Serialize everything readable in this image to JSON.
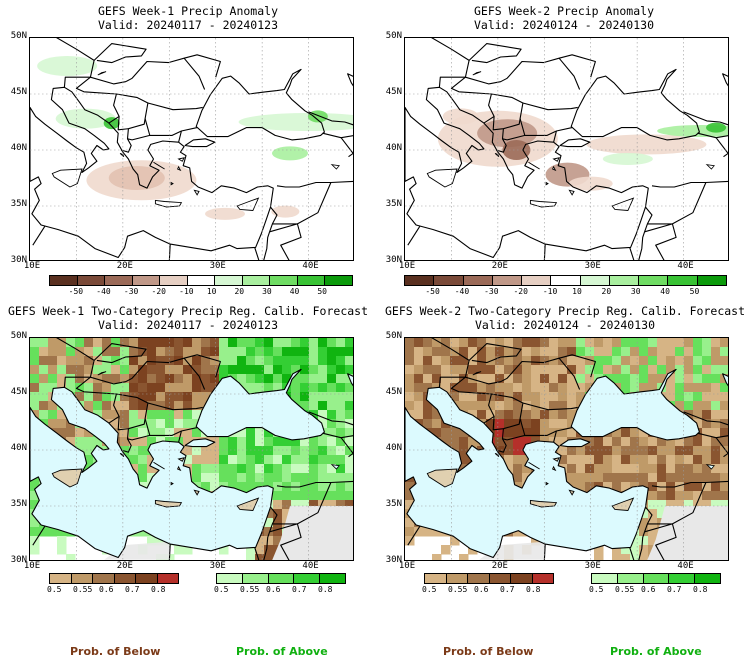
{
  "panels": [
    {
      "title": "GEFS Week-1 Precip Anomaly",
      "valid": "Valid: 20240117 - 20240123"
    },
    {
      "title": "GEFS Week-2 Precip Anomaly",
      "valid": "Valid: 20240124 - 20240130"
    },
    {
      "title": "GEFS Week-1 Two-Category Precip Reg. Calib. Forecast",
      "valid": "Valid: 20240117 - 20240123"
    },
    {
      "title": "GEFS Week-2 Two-Category Precip Reg. Calib. Forecast",
      "valid": "Valid: 20240124 - 20240130"
    }
  ],
  "lat_labels": [
    "50N",
    "45N",
    "40N",
    "35N",
    "30N"
  ],
  "lon_labels": [
    "10E",
    "20E",
    "30E",
    "40E"
  ],
  "anomaly_colorbar": {
    "ticks": [
      "-50",
      "-40",
      "-30",
      "-20",
      "-10",
      "10",
      "20",
      "30",
      "40",
      "50"
    ],
    "colors": [
      "#5a3020",
      "#7a4a38",
      "#9b6a58",
      "#c09888",
      "#e6cfc3",
      "#ffffff",
      "#d6f7d3",
      "#a9ef9f",
      "#6fdc63",
      "#38c234",
      "#0b9a0b"
    ]
  },
  "prob_below_colorbar": {
    "ticks": [
      "0.5",
      "0.55",
      "0.6",
      "0.7",
      "0.8"
    ],
    "colors": [
      "#d6b485",
      "#bf9a68",
      "#a0754b",
      "#8a5530",
      "#7c4220",
      "#b5302a"
    ]
  },
  "prob_above_colorbar": {
    "ticks": [
      "0.5",
      "0.55",
      "0.6",
      "0.7",
      "0.8"
    ],
    "colors": [
      "#c9fbc0",
      "#98f08c",
      "#66e05c",
      "#34cf34",
      "#10b410"
    ]
  },
  "labels": {
    "prob_below": "Prob. of Below",
    "prob_above": "Prob. of Above"
  },
  "colors": {
    "below_label": "#7b3a18",
    "above_label": "#10b010",
    "sea": "#dcfafe",
    "nodata": "#e8e8e8"
  }
}
